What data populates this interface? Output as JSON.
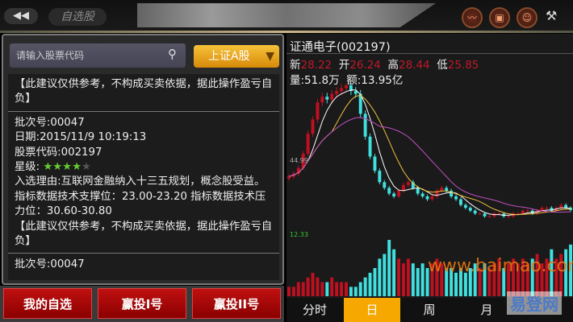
{
  "header": {
    "back_icon": "double-arrow-left-icon",
    "title": "自选股",
    "icons": [
      "trend-chart-icon",
      "note-icon",
      "user-icon",
      "tools-icon"
    ]
  },
  "search": {
    "placeholder": "请输入股票代码",
    "market": "上证A股"
  },
  "disclaimer": "【此建议仅供参考，不构成买卖依据，据此操作盈亏自负】",
  "record": {
    "batch": "批次号:00047",
    "date": "日期:2015/11/9 10:19:13",
    "code": "股票代码:002197",
    "stars_label": "星级:",
    "stars": 4,
    "stars_max": 5,
    "reason": "入选理由:互联网金融纳入十三五规划，概念股受益。 指标数据技术支撑位：23.00-23.20  指标数据技术压力位：30.60-30.80",
    "disclaimer": "【此建议仅供参考，不构成买卖依据，据此操作盈亏自负】",
    "next_partial": "批次号:00047"
  },
  "buttons": [
    "我的自选",
    "赢投I号",
    "赢投II号"
  ],
  "stock": {
    "name": "证通电子(002197)",
    "new_label": "新",
    "new": "28.22",
    "open_label": "开",
    "open": "26.24",
    "high_label": "高",
    "high": "28.44",
    "low_label": "低",
    "low": "25.85",
    "vol": "量:51.8万",
    "amount": "额:13.95亿"
  },
  "chart_data": {
    "type": "candlestick",
    "price_label": "44.99",
    "volume_label": "12.33",
    "close": [
      40,
      41,
      43,
      48,
      55,
      60,
      66,
      68,
      67,
      69,
      70,
      71,
      72,
      70,
      69,
      62,
      54,
      47,
      42,
      38,
      36,
      34,
      33,
      35,
      37,
      38,
      36,
      34,
      33,
      32,
      33,
      35,
      36,
      35,
      33,
      32,
      30,
      29,
      28,
      27,
      27,
      26,
      26,
      27,
      27,
      26,
      26,
      27,
      27,
      28,
      28,
      27,
      28,
      29,
      29,
      28,
      29,
      30,
      29,
      28.22
    ],
    "volume": [
      2,
      2,
      3,
      3,
      4,
      5,
      4,
      3,
      3,
      4,
      3,
      3,
      3,
      2,
      2,
      3,
      4,
      5,
      6,
      8,
      9,
      12,
      10,
      8,
      7,
      8,
      7,
      6,
      7,
      6,
      7,
      8,
      7,
      6,
      6,
      5,
      6,
      5,
      6,
      7,
      6,
      7,
      6,
      7,
      8,
      6,
      7,
      8,
      7,
      8,
      7,
      8,
      9,
      7,
      8,
      10,
      8,
      9,
      10,
      11
    ],
    "colors": {
      "up": "#c01020",
      "down": "#40e0e0",
      "ma5": "#ffffff",
      "ma10": "#f0c040",
      "ma20": "#c050c0"
    }
  },
  "tabs": [
    "分时",
    "日",
    "周",
    "月"
  ],
  "active_tab": 1,
  "watermark": "www.baimao.com",
  "logo": "易登网"
}
